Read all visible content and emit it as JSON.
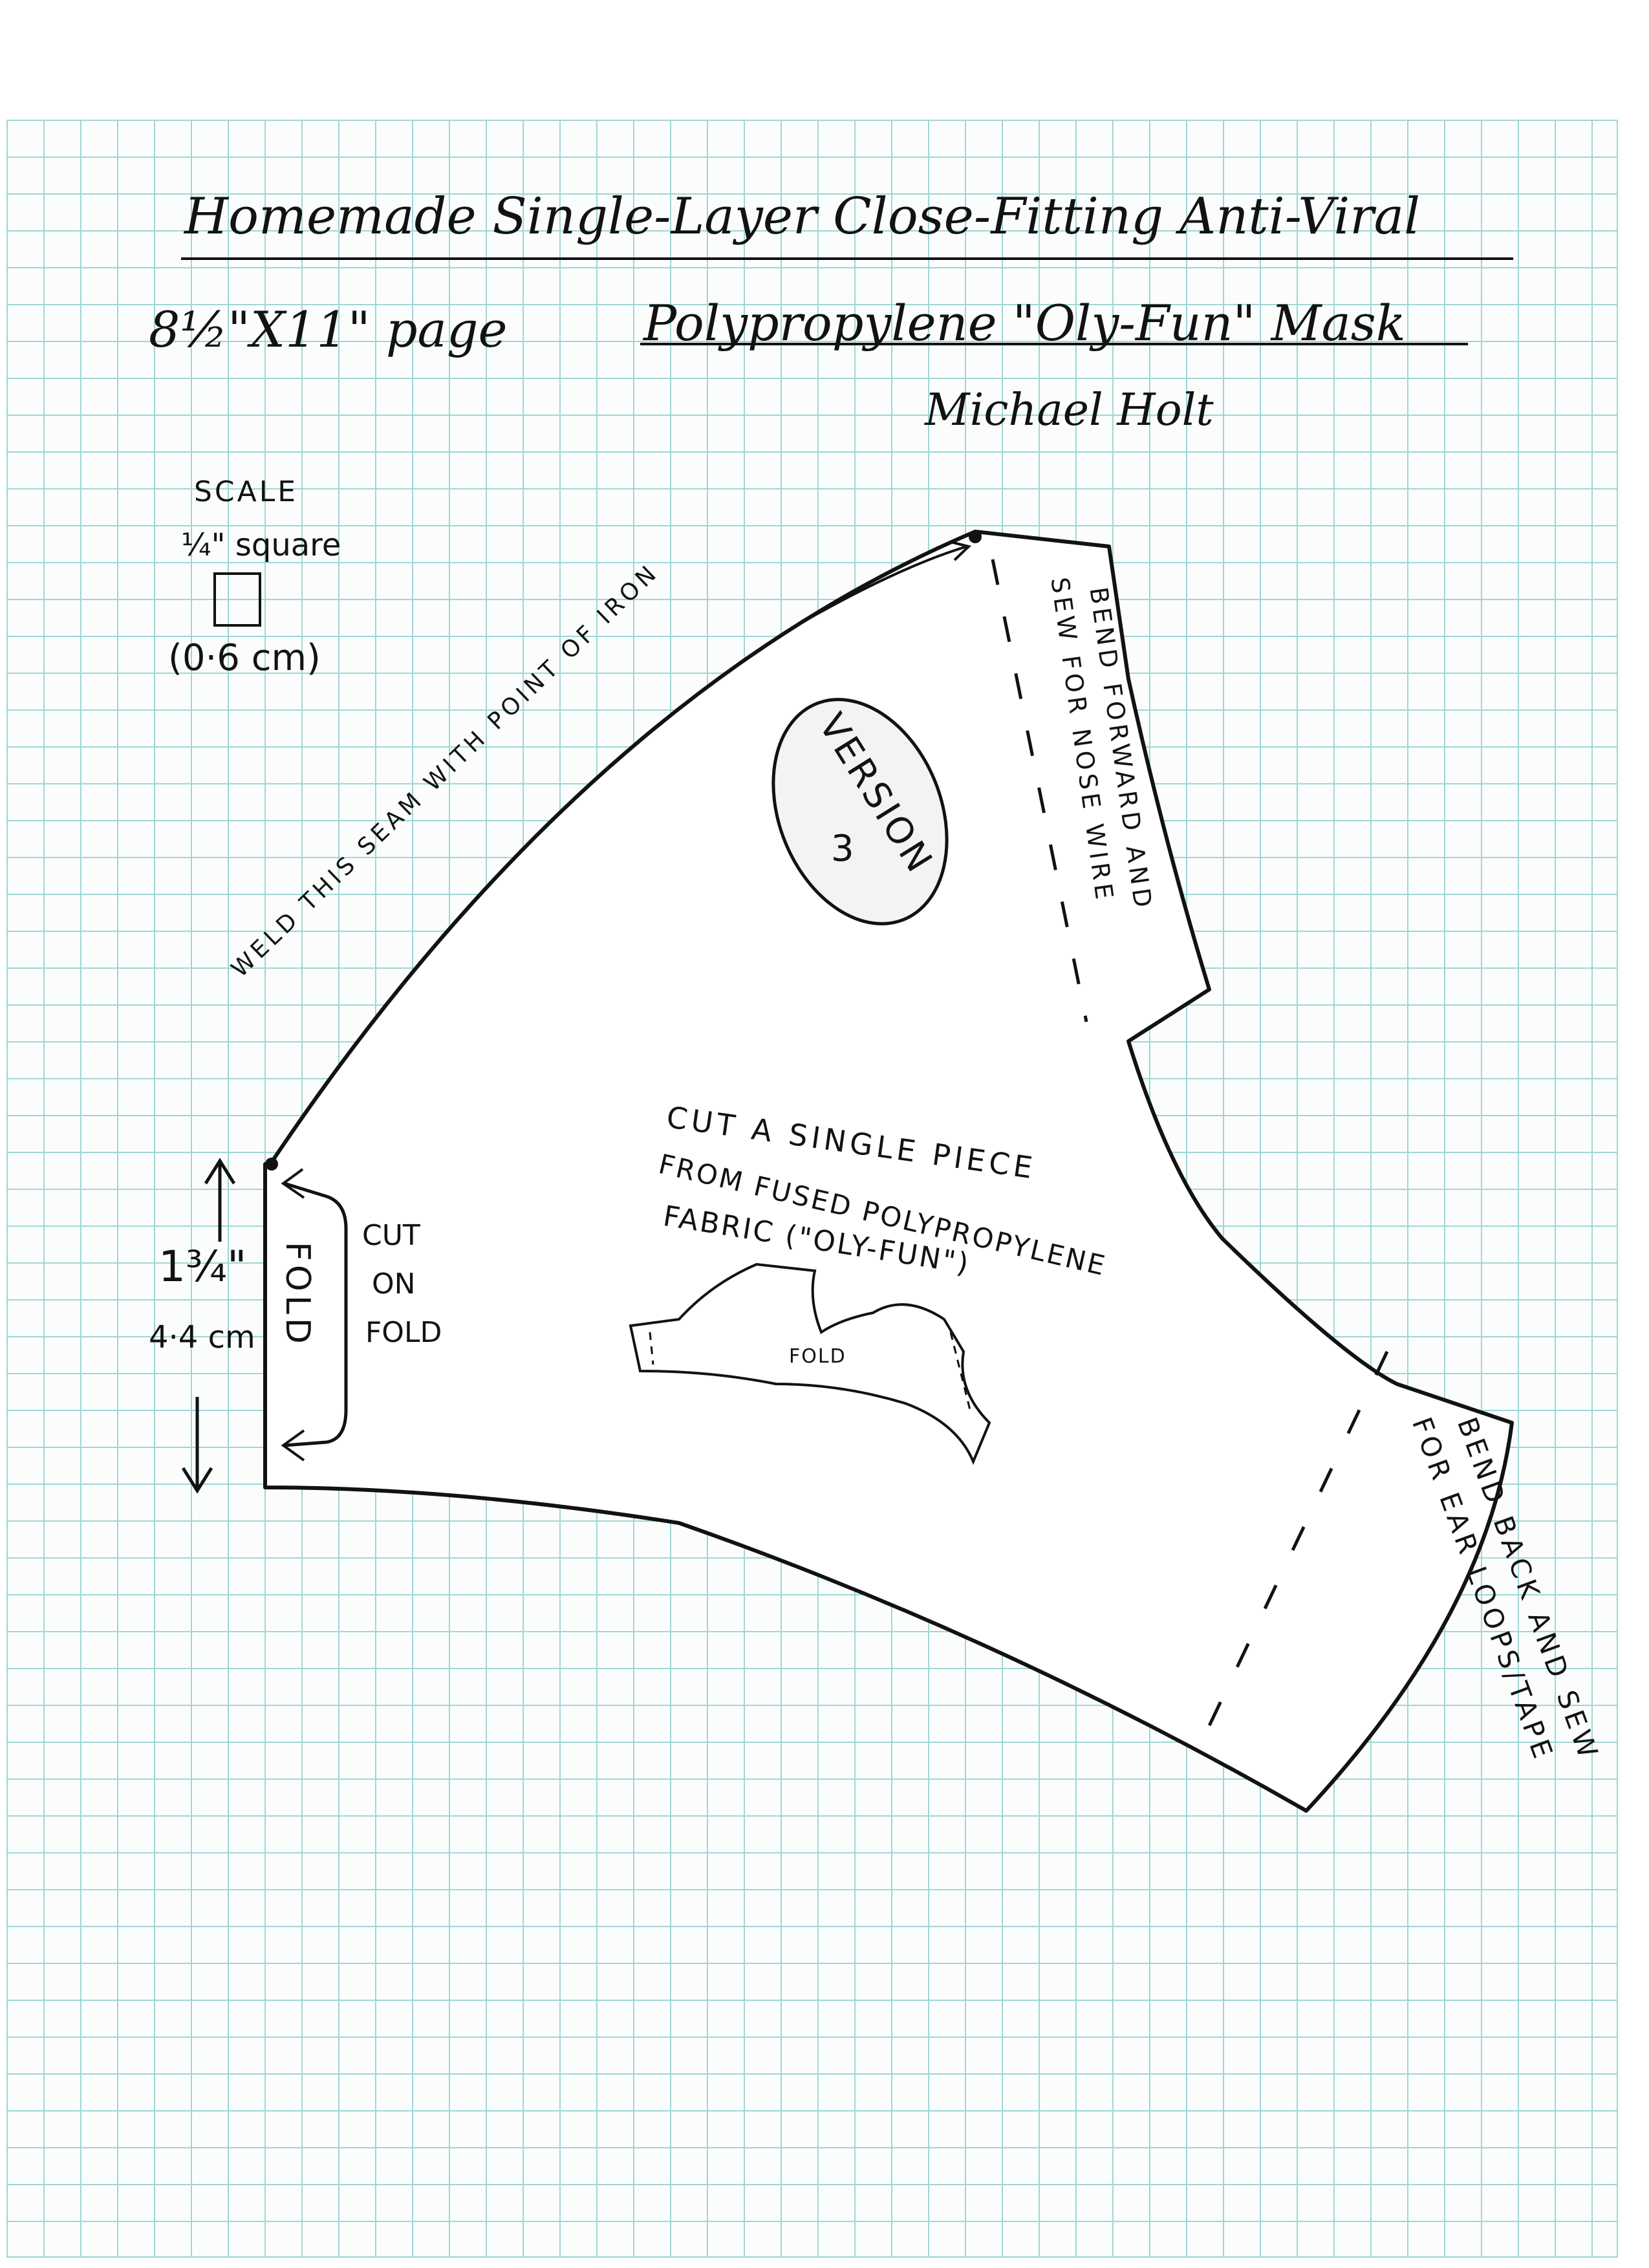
{
  "title_line1": "Homemade Single-Layer Close-Fitting Anti-Viral",
  "title_line2": "Polypropylene \"Oly-Fun\" Mask",
  "page_size": "8½\"X11\" page",
  "author": "Michael Holt",
  "scale": {
    "heading": "SCALE",
    "square_label": "¼\" square",
    "metric": "(0·6 cm)"
  },
  "version_badge": {
    "line1": "VERSION",
    "line2": "3"
  },
  "seam_note": "WELD THIS SEAM WITH POINT OF IRON",
  "nose_note": {
    "line1": "BEND FORWARD AND",
    "line2": "SEW FOR NOSE WIRE"
  },
  "cut_instructions": {
    "line1": "CUT A SINGLE PIECE",
    "line2": "FROM FUSED POLYPROPYLENE",
    "line3": "FABRIC (\"OLY-FUN\")"
  },
  "fold_label": "FOLD",
  "cut_on_fold": {
    "line1": "CUT",
    "line2": "ON",
    "line3": "FOLD"
  },
  "dimension": {
    "imperial": "1¾\"",
    "metric": "4·4 cm"
  },
  "mini_fold_label": "FOLD",
  "ear_note": {
    "line1": "BEND BACK AND SEW",
    "line2": "FOR EAR LOOPS/TAPE"
  },
  "colors": {
    "grid_line": "#9fd6d6",
    "ink": "#121212",
    "paper": "#fbfdfd"
  }
}
